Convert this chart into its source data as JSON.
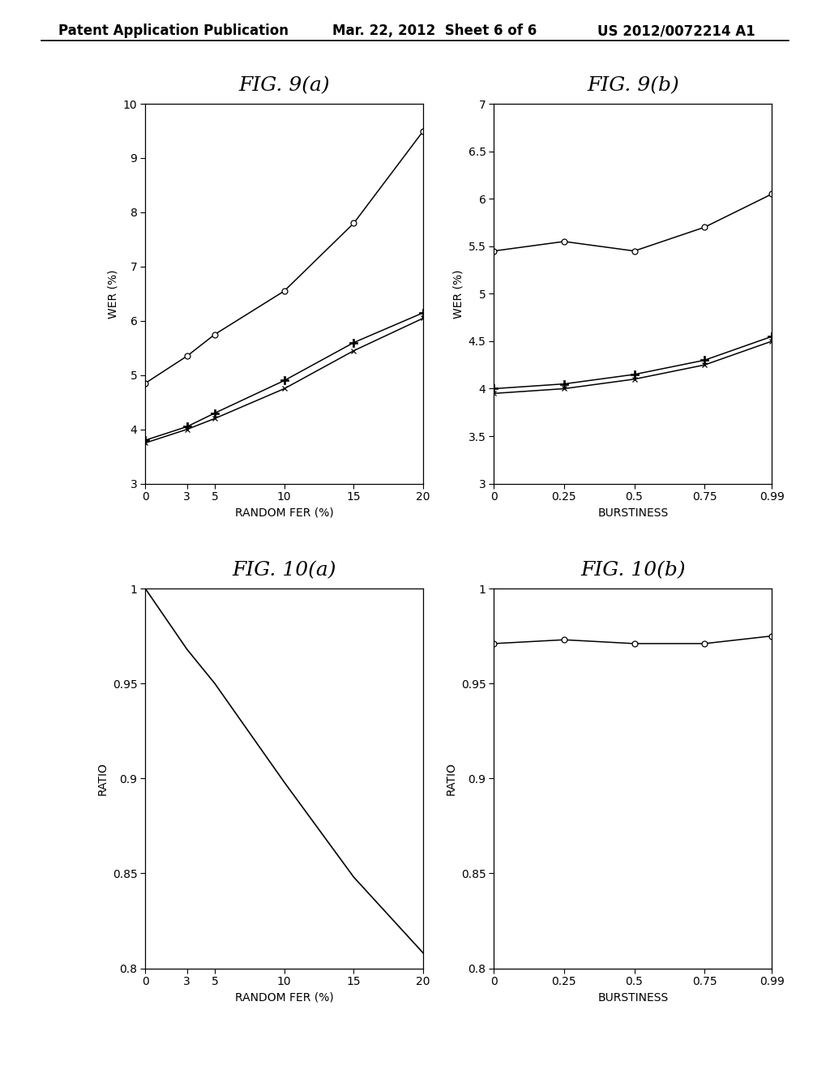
{
  "fig9a": {
    "title": "FIG. 9(a)",
    "xlabel": "RANDOM FER (%)",
    "ylabel": "WER (%)",
    "xlim": [
      0,
      20
    ],
    "ylim": [
      3,
      10
    ],
    "xticks": [
      0,
      3,
      5,
      10,
      15,
      20
    ],
    "yticks": [
      3,
      4,
      5,
      6,
      7,
      8,
      9,
      10
    ],
    "line1_x": [
      0,
      3,
      5,
      10,
      15,
      20
    ],
    "line1_y": [
      4.85,
      5.35,
      5.75,
      6.55,
      7.8,
      9.5
    ],
    "line2_x": [
      0,
      3,
      5,
      10,
      15,
      20
    ],
    "line2_y": [
      3.8,
      4.05,
      4.3,
      4.9,
      5.6,
      6.15
    ],
    "line3_x": [
      0,
      3,
      5,
      10,
      15,
      20
    ],
    "line3_y": [
      3.75,
      4.0,
      4.2,
      4.75,
      5.45,
      6.05
    ]
  },
  "fig9b": {
    "title": "FIG. 9(b)",
    "xlabel": "BURSTINESS",
    "ylabel": "WER (%)",
    "xlim": [
      0,
      0.99
    ],
    "ylim": [
      3,
      7
    ],
    "xticks": [
      0,
      0.25,
      0.5,
      0.75,
      0.99
    ],
    "xtick_labels": [
      "0",
      "0.25",
      "0.5",
      "0.75",
      "0.99"
    ],
    "yticks": [
      3,
      3.5,
      4,
      4.5,
      5,
      5.5,
      6,
      6.5,
      7
    ],
    "line1_x": [
      0,
      0.25,
      0.5,
      0.75,
      0.99
    ],
    "line1_y": [
      5.45,
      5.55,
      5.45,
      5.7,
      6.05
    ],
    "line2_x": [
      0,
      0.25,
      0.5,
      0.75,
      0.99
    ],
    "line2_y": [
      4.0,
      4.05,
      4.15,
      4.3,
      4.55
    ],
    "line3_x": [
      0,
      0.25,
      0.5,
      0.75,
      0.99
    ],
    "line3_y": [
      3.95,
      4.0,
      4.1,
      4.25,
      4.5
    ]
  },
  "fig10a": {
    "title": "FIG. 10(a)",
    "xlabel": "RANDOM FER (%)",
    "ylabel": "RATIO",
    "xlim": [
      0,
      20
    ],
    "ylim": [
      0.8,
      1.0
    ],
    "xticks": [
      0,
      3,
      5,
      10,
      15,
      20
    ],
    "yticks": [
      0.8,
      0.85,
      0.9,
      0.95,
      1.0
    ],
    "line1_x": [
      0,
      3,
      5,
      10,
      15,
      20
    ],
    "line1_y": [
      1.0,
      0.968,
      0.95,
      0.898,
      0.848,
      0.808
    ]
  },
  "fig10b": {
    "title": "FIG. 10(b)",
    "xlabel": "BURSTINESS",
    "ylabel": "RATIO",
    "xlim": [
      0,
      0.99
    ],
    "ylim": [
      0.8,
      1.0
    ],
    "xticks": [
      0,
      0.25,
      0.5,
      0.75,
      0.99
    ],
    "xtick_labels": [
      "0",
      "0.25",
      "0.5",
      "0.75",
      "0.99"
    ],
    "yticks": [
      0.8,
      0.85,
      0.9,
      0.95,
      1.0
    ],
    "line1_x": [
      0,
      0.25,
      0.5,
      0.75,
      0.99
    ],
    "line1_y": [
      0.971,
      0.973,
      0.971,
      0.971,
      0.975
    ]
  },
  "header_left": "Patent Application Publication",
  "header_mid": "Mar. 22, 2012  Sheet 6 of 6",
  "header_right": "US 2012/0072214 A1",
  "bg_color": "#ffffff",
  "title_fontsize": 18,
  "axis_label_fontsize": 10,
  "tick_fontsize": 10,
  "header_fontsize": 12
}
